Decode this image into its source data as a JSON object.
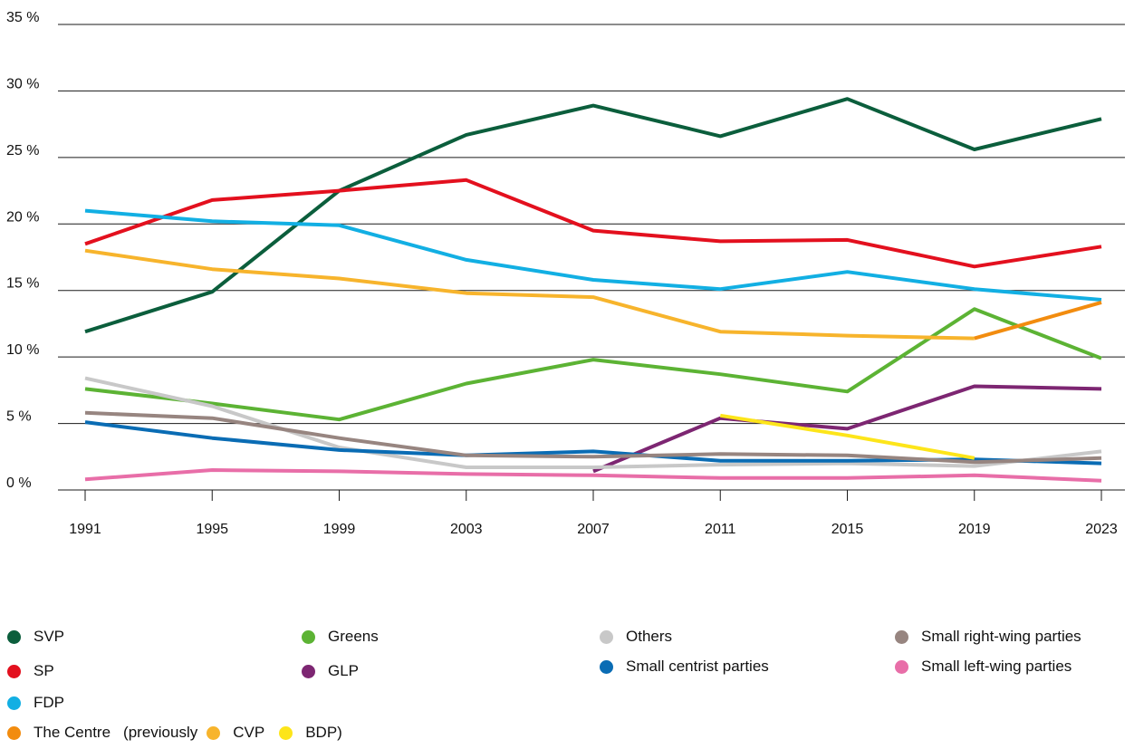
{
  "chart_data": {
    "type": "line",
    "x": [
      1991,
      1995,
      1999,
      2003,
      2007,
      2011,
      2015,
      2019,
      2023
    ],
    "y_ticks": [
      "0 %",
      "5 %",
      "10 %",
      "15 %",
      "20 %",
      "25 %",
      "30 %",
      "35 %"
    ],
    "ylim": [
      0,
      35
    ],
    "grid": "horizontal",
    "legend_position": "bottom",
    "series": [
      {
        "name": "SVP",
        "color": "#0b5e3c",
        "x": [
          1991,
          1995,
          1999,
          2003,
          2007,
          2011,
          2015,
          2019,
          2023
        ],
        "values": [
          11.9,
          14.9,
          22.5,
          26.7,
          28.9,
          26.6,
          29.4,
          25.6,
          27.9
        ]
      },
      {
        "name": "SP",
        "color": "#e3101e",
        "x": [
          1991,
          1995,
          1999,
          2003,
          2007,
          2011,
          2015,
          2019,
          2023
        ],
        "values": [
          18.5,
          21.8,
          22.5,
          23.3,
          19.5,
          18.7,
          18.8,
          16.8,
          18.3
        ]
      },
      {
        "name": "FDP",
        "color": "#12afe3",
        "x": [
          1991,
          1995,
          1999,
          2003,
          2007,
          2011,
          2015,
          2019,
          2023
        ],
        "values": [
          21.0,
          20.2,
          19.9,
          17.3,
          15.8,
          15.1,
          16.4,
          15.1,
          14.3
        ]
      },
      {
        "name": "Greens",
        "color": "#5cb334",
        "x": [
          1991,
          1995,
          1999,
          2003,
          2007,
          2011,
          2015,
          2019,
          2023
        ],
        "values": [
          7.6,
          6.5,
          5.3,
          8.0,
          9.8,
          8.7,
          7.4,
          13.6,
          9.9
        ]
      },
      {
        "name": "GLP",
        "color": "#7d2672",
        "x": [
          2007,
          2011,
          2015,
          2019,
          2023
        ],
        "values": [
          1.4,
          5.4,
          4.6,
          7.8,
          7.6
        ]
      },
      {
        "name": "Others",
        "color": "#c8c8c8",
        "x": [
          1991,
          1995,
          1999,
          2003,
          2007,
          2011,
          2015,
          2019,
          2023
        ],
        "values": [
          8.4,
          6.3,
          3.2,
          1.7,
          1.7,
          1.9,
          2.0,
          1.8,
          2.9
        ]
      },
      {
        "name": "Small centrist parties",
        "color": "#0a6cb4",
        "x": [
          1991,
          1995,
          1999,
          2003,
          2007,
          2011,
          2015,
          2019,
          2023
        ],
        "values": [
          5.1,
          3.9,
          3.0,
          2.6,
          2.9,
          2.2,
          2.2,
          2.3,
          2.0
        ]
      },
      {
        "name": "Small right-wing parties",
        "color": "#978580",
        "x": [
          1991,
          1995,
          1999,
          2003,
          2007,
          2011,
          2015,
          2019,
          2023
        ],
        "values": [
          5.8,
          5.4,
          3.9,
          2.6,
          2.5,
          2.7,
          2.6,
          2.1,
          2.4
        ]
      },
      {
        "name": "Small left-wing parties",
        "color": "#e86ea8",
        "x": [
          1991,
          1995,
          1999,
          2003,
          2007,
          2011,
          2015,
          2019,
          2023
        ],
        "values": [
          0.8,
          1.5,
          1.4,
          1.2,
          1.1,
          0.9,
          0.9,
          1.1,
          0.7
        ]
      },
      {
        "name": "CVP",
        "color": "#f7b42c",
        "x": [
          1991,
          1995,
          1999,
          2003,
          2007,
          2011,
          2015,
          2019
        ],
        "values": [
          18.0,
          16.6,
          15.9,
          14.8,
          14.5,
          11.9,
          11.6,
          11.4
        ]
      },
      {
        "name": "The Centre",
        "color": "#f28c0f",
        "x": [
          2019,
          2023
        ],
        "values": [
          11.4,
          14.1
        ]
      },
      {
        "name": "BDP",
        "color": "#fde51a",
        "x": [
          2011,
          2015,
          2019
        ],
        "values": [
          5.6,
          4.1,
          2.4
        ]
      }
    ]
  },
  "legend": {
    "items": [
      {
        "label": "SVP",
        "color": "#0b5e3c"
      },
      {
        "label": "Greens",
        "color": "#5cb334"
      },
      {
        "label": "Others",
        "color": "#c8c8c8"
      },
      {
        "label": "Small right-wing parties",
        "color": "#978580"
      },
      {
        "label": "SP",
        "color": "#e3101e"
      },
      {
        "label": "GLP",
        "color": "#7d2672"
      },
      {
        "label": "Small centrist parties",
        "color": "#0a6cb4"
      },
      {
        "label": "Small left-wing parties",
        "color": "#e86ea8"
      },
      {
        "label": "FDP",
        "color": "#12afe3"
      }
    ],
    "centre_row": {
      "centre_label": "The Centre",
      "centre_color": "#f28c0f",
      "previously_text": "(previously",
      "cvp_label": "CVP",
      "cvp_color": "#f7b42c",
      "bdp_label": "BDP)",
      "bdp_color": "#fde51a"
    }
  }
}
